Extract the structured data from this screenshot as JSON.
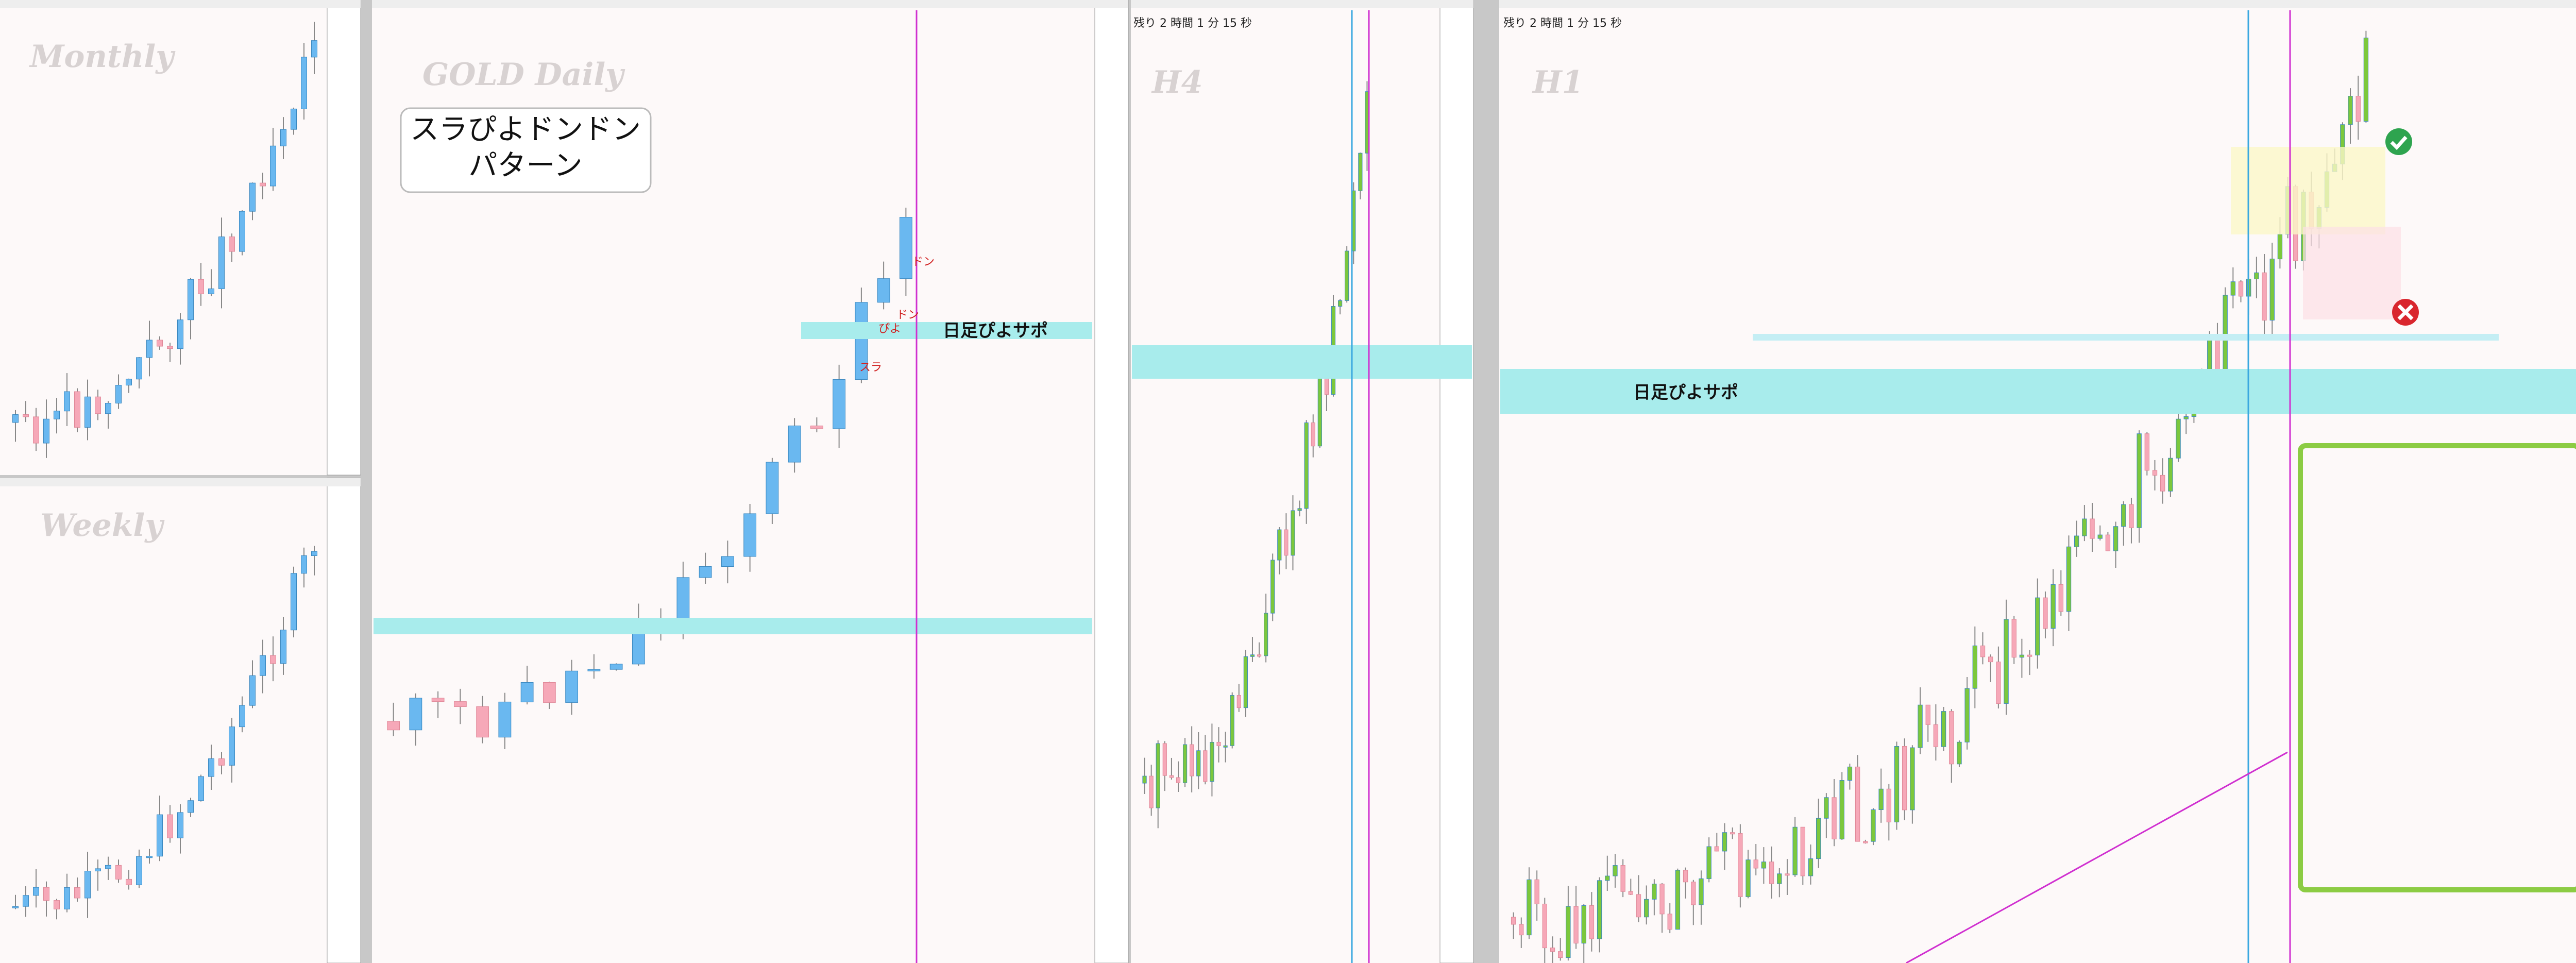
{
  "panels": {
    "monthly": "Monthly",
    "weekly": "Weekly",
    "daily": "GOLD Daily",
    "h4": "H4",
    "h1": "H1"
  },
  "pattern_box": {
    "line1": "スラぴよドンドン",
    "line2": "パターン"
  },
  "support_label_daily": "日足ぴよサポ",
  "support_label_h1": "日足ぴよサポ",
  "countdown_h4": "残り 2 時間 1 分 15 秒",
  "countdown_h1": "残り 2 時間 1 分 15 秒",
  "daily_marks": {
    "sura": "スラ",
    "piyo": "ぴよ",
    "don1": "ドン",
    "don2": "ドン"
  }
}
